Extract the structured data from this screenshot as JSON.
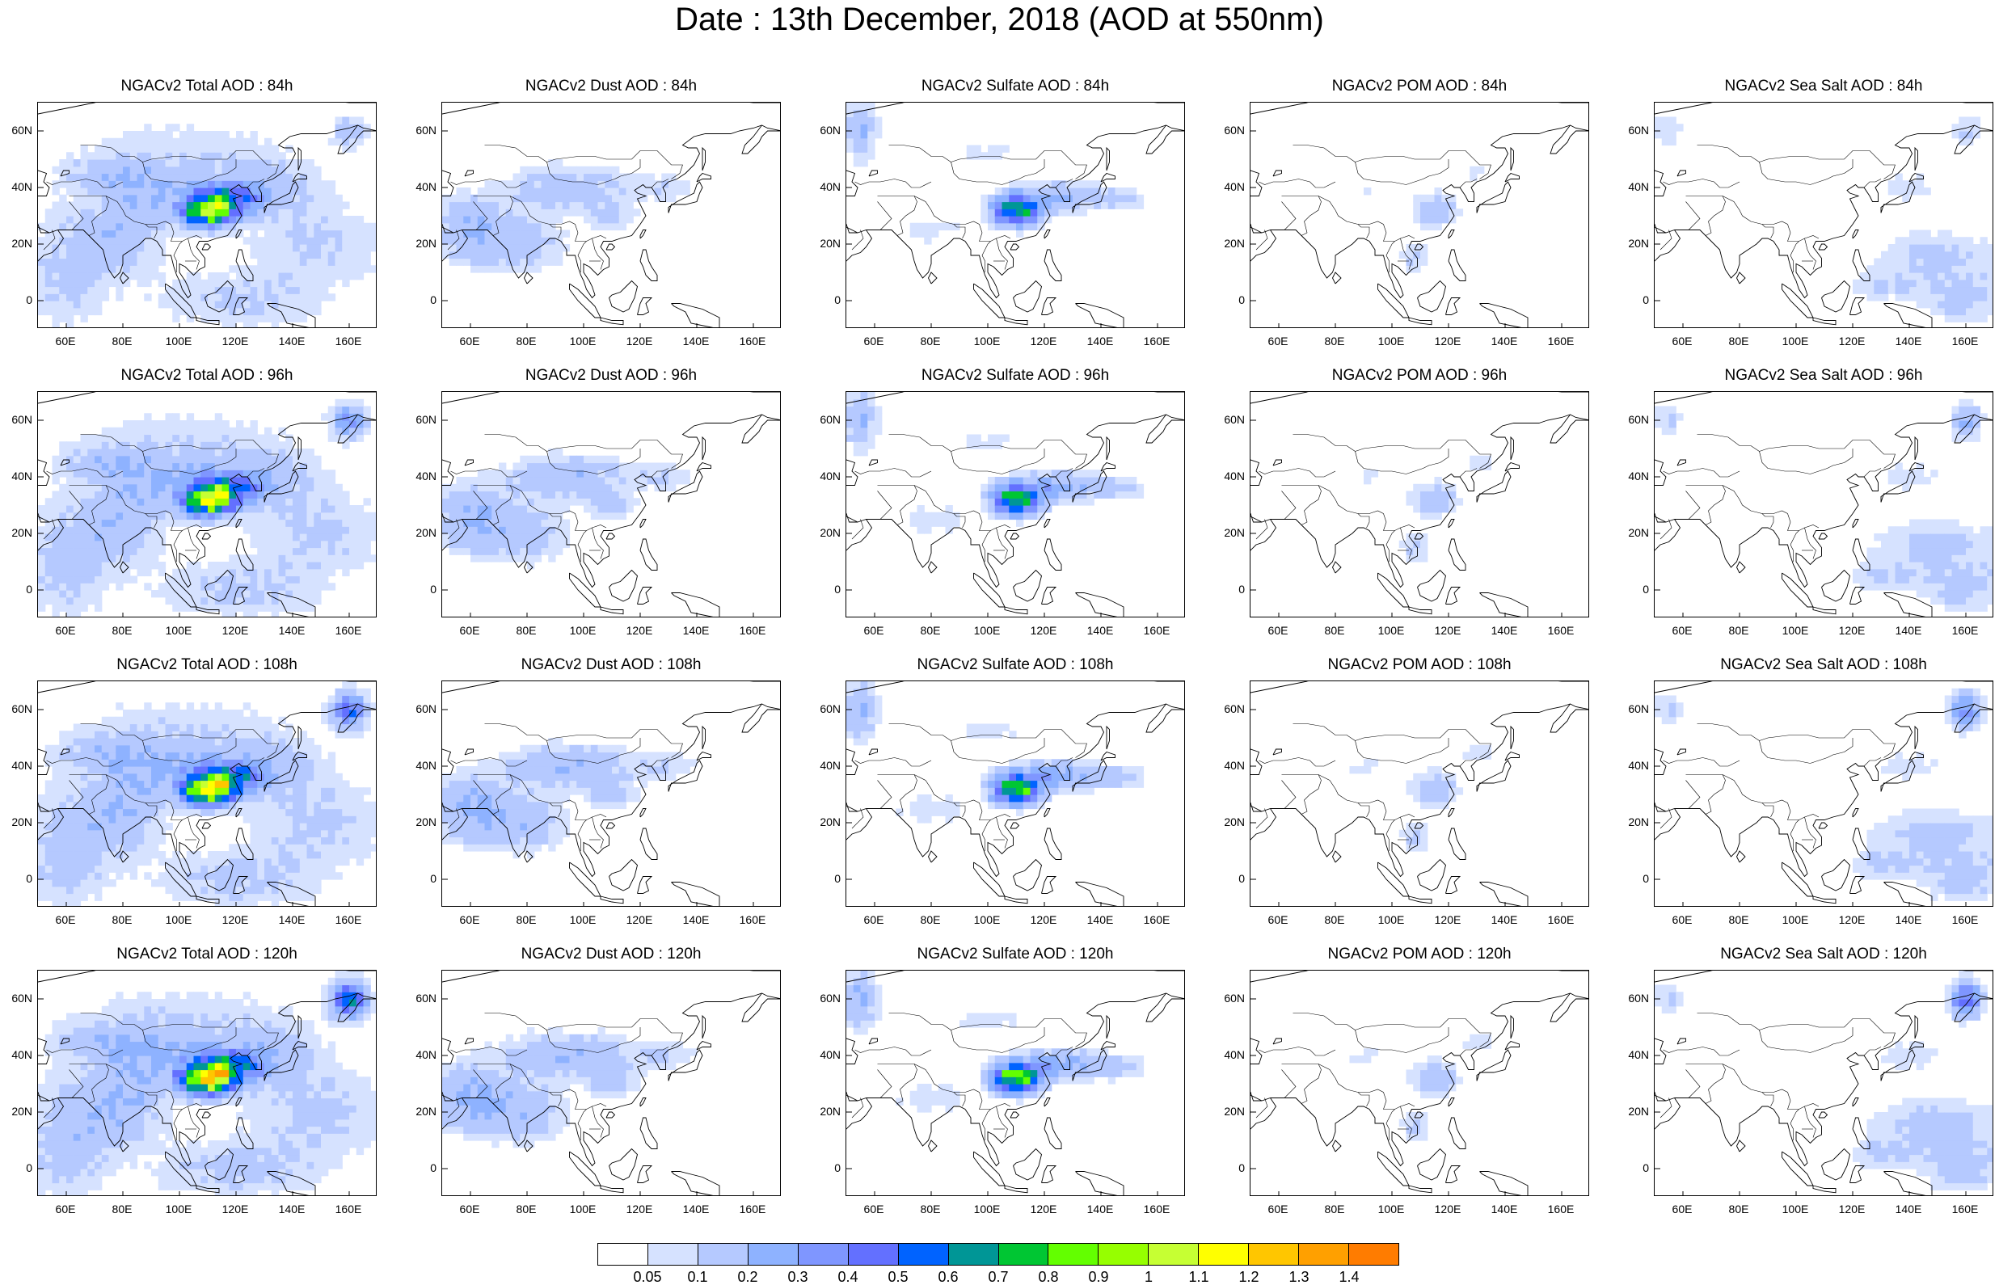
{
  "title": "Date : 13th December, 2018 (AOD at 550nm)",
  "lat_labels": [
    "60N",
    "40N",
    "20N",
    "0"
  ],
  "lon_labels": [
    "60E",
    "80E",
    "100E",
    "120E",
    "140E",
    "160E"
  ],
  "panels": [
    {
      "title": "NGACv2 Total AOD : 84h",
      "variable": "total",
      "forecast_hour": 84
    },
    {
      "title": "NGACv2 Dust AOD : 84h",
      "variable": "dust",
      "forecast_hour": 84
    },
    {
      "title": "NGACv2 Sulfate AOD : 84h",
      "variable": "sulfate",
      "forecast_hour": 84
    },
    {
      "title": "NGACv2 POM AOD : 84h",
      "variable": "pom",
      "forecast_hour": 84
    },
    {
      "title": "NGACv2 Sea Salt AOD : 84h",
      "variable": "seasalt",
      "forecast_hour": 84
    },
    {
      "title": "NGACv2 Total AOD : 96h",
      "variable": "total",
      "forecast_hour": 96
    },
    {
      "title": "NGACv2 Dust AOD : 96h",
      "variable": "dust",
      "forecast_hour": 96
    },
    {
      "title": "NGACv2 Sulfate AOD : 96h",
      "variable": "sulfate",
      "forecast_hour": 96
    },
    {
      "title": "NGACv2 POM AOD : 96h",
      "variable": "pom",
      "forecast_hour": 96
    },
    {
      "title": "NGACv2 Sea Salt AOD : 96h",
      "variable": "seasalt",
      "forecast_hour": 96
    },
    {
      "title": "NGACv2 Total AOD : 108h",
      "variable": "total",
      "forecast_hour": 108
    },
    {
      "title": "NGACv2 Dust AOD : 108h",
      "variable": "dust",
      "forecast_hour": 108
    },
    {
      "title": "NGACv2 Sulfate AOD : 108h",
      "variable": "sulfate",
      "forecast_hour": 108
    },
    {
      "title": "NGACv2 POM AOD : 108h",
      "variable": "pom",
      "forecast_hour": 108
    },
    {
      "title": "NGACv2 Sea Salt AOD : 108h",
      "variable": "seasalt",
      "forecast_hour": 108
    },
    {
      "title": "NGACv2 Total AOD : 120h",
      "variable": "total",
      "forecast_hour": 120
    },
    {
      "title": "NGACv2 Dust AOD : 120h",
      "variable": "dust",
      "forecast_hour": 120
    },
    {
      "title": "NGACv2 Sulfate AOD : 120h",
      "variable": "sulfate",
      "forecast_hour": 120
    },
    {
      "title": "NGACv2 POM AOD : 120h",
      "variable": "pom",
      "forecast_hour": 120
    },
    {
      "title": "NGACv2 Sea Salt  AOD : 120h",
      "variable": "seasalt",
      "forecast_hour": 120
    }
  ],
  "colorbar": {
    "labels": [
      "0.05",
      "0.1",
      "0.2",
      "0.3",
      "0.4",
      "0.5",
      "0.6",
      "0.7",
      "0.8",
      "0.9",
      "1",
      "1.1",
      "1.2",
      "1.3",
      "1.4"
    ],
    "colors": [
      "#ffffff",
      "#d6e2ff",
      "#b5c9ff",
      "#8eb2ff",
      "#7f96ff",
      "#6370ff",
      "#0063ff",
      "#009696",
      "#00c633",
      "#63ff00",
      "#96ff00",
      "#c6ff33",
      "#ffff00",
      "#ffc600",
      "#ffa000",
      "#ff7c00",
      "#ff1900"
    ]
  }
}
